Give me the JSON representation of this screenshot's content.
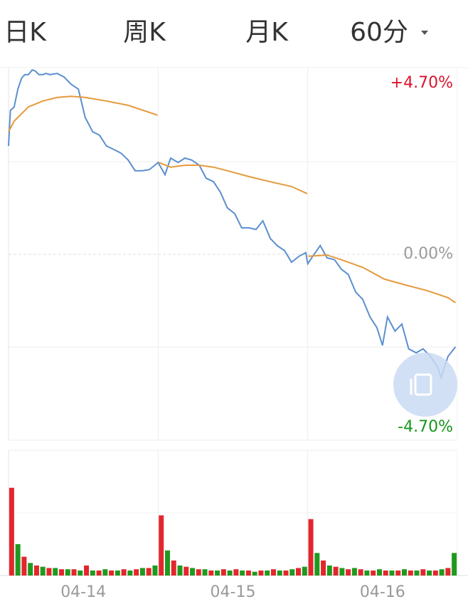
{
  "tabs": [
    "日K",
    "周K",
    "月K",
    "60分"
  ],
  "chart_data": {
    "type": "line",
    "xlim": [
      0,
      720
    ],
    "xticks": [
      {
        "value": 120,
        "label": "04-14"
      },
      {
        "value": 360,
        "label": "04-15"
      },
      {
        "value": 600,
        "label": "04-16"
      }
    ],
    "xgrid": [
      240,
      480
    ],
    "ylim": [
      -4.7,
      4.7
    ],
    "yticks": [
      {
        "value": 4.7,
        "label": "+4.70%"
      },
      {
        "value": 0,
        "label": "0.00%"
      },
      {
        "value": -4.7,
        "label": "-4.70%"
      }
    ],
    "ytick_colors": [
      "#d9142b",
      "#9a9a9a",
      "#17961b"
    ],
    "ygrid": [
      2.35,
      -2.35
    ],
    "series": [
      {
        "color": "#5b8fcf",
        "x": [
          0,
          3,
          9,
          15,
          21,
          26,
          32,
          38,
          43,
          49,
          55,
          60,
          66,
          78,
          89,
          100,
          112,
          123,
          135,
          146,
          157,
          169,
          180,
          192,
          203,
          215,
          226,
          240,
          251,
          260,
          272,
          283,
          294,
          306,
          317,
          329,
          340,
          351,
          363,
          374,
          386,
          397,
          408,
          420,
          431,
          443,
          454,
          466,
          477,
          480,
          488,
          500,
          511,
          523,
          534,
          545,
          557,
          568,
          580,
          591,
          600,
          608,
          620,
          631,
          642,
          654,
          665,
          677,
          688,
          694,
          705,
          717
        ],
        "values": [
          2.75,
          3.65,
          3.74,
          4.19,
          4.47,
          4.56,
          4.56,
          4.68,
          4.65,
          4.56,
          4.56,
          4.59,
          4.56,
          4.59,
          4.5,
          4.32,
          4.19,
          3.47,
          3.11,
          3.02,
          2.75,
          2.66,
          2.57,
          2.39,
          2.12,
          2.12,
          2.15,
          2.33,
          2.02,
          2.44,
          2.33,
          2.44,
          2.39,
          2.26,
          1.93,
          1.84,
          1.57,
          1.18,
          1.03,
          0.67,
          0.67,
          0.63,
          0.85,
          0.4,
          0.22,
          0.09,
          -0.2,
          -0.05,
          0.04,
          -0.24,
          -0.05,
          0.22,
          -0.09,
          -0.14,
          -0.38,
          -0.51,
          -0.96,
          -1.14,
          -1.59,
          -1.86,
          -2.31,
          -1.59,
          -1.95,
          -1.77,
          -2.4,
          -2.5,
          -2.4,
          -2.59,
          -2.86,
          -3.13,
          -2.59,
          -2.35
        ]
      },
      {
        "color": "#e59a3c",
        "x": [
          0,
          9,
          32,
          55,
          78,
          100,
          123,
          157,
          192,
          239,
          240,
          241,
          260,
          283,
          306,
          329,
          351,
          386,
          420,
          454,
          479,
          480,
          481,
          511,
          534,
          568,
          603,
          637,
          671,
          705,
          717
        ],
        "values": [
          3.11,
          3.38,
          3.74,
          3.89,
          3.98,
          4.01,
          3.98,
          3.89,
          3.78,
          3.53,
          null,
          2.33,
          2.21,
          2.26,
          2.26,
          2.21,
          2.12,
          1.97,
          1.84,
          1.72,
          1.54,
          null,
          -0.05,
          -0.02,
          -0.14,
          -0.33,
          -0.63,
          -0.78,
          -0.92,
          -1.1,
          -1.23
        ]
      }
    ],
    "volume": {
      "ylim": [
        0,
        100
      ],
      "values": [
        70,
        25,
        15,
        10,
        8,
        7,
        6,
        6,
        5,
        5,
        5,
        4,
        8,
        4,
        4,
        5,
        4,
        4,
        5,
        4,
        5,
        6,
        6,
        8,
        48,
        20,
        12,
        8,
        7,
        6,
        5,
        5,
        4,
        4,
        5,
        4,
        5,
        4,
        4,
        3,
        4,
        4,
        5,
        4,
        4,
        5,
        6,
        7,
        45,
        18,
        12,
        8,
        7,
        6,
        5,
        6,
        5,
        4,
        4,
        5,
        4,
        4,
        4,
        5,
        4,
        4,
        5,
        4,
        4,
        5,
        6,
        18
      ],
      "colors": [
        "#e3262e",
        "#1f9a1f"
      ]
    }
  }
}
